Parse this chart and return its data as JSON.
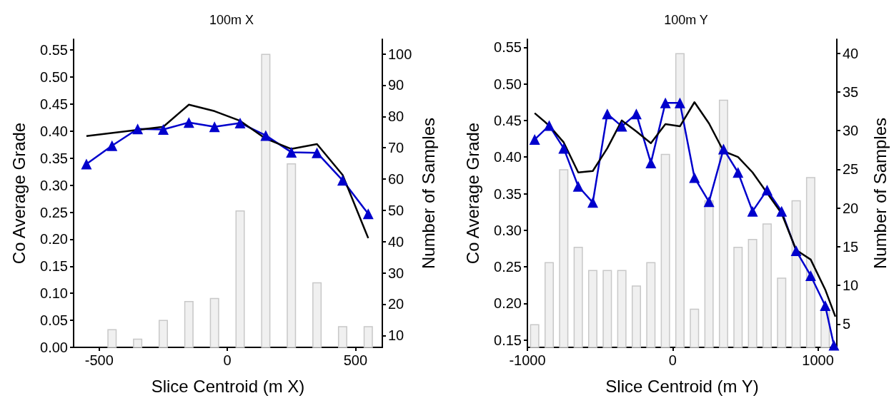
{
  "chart_data": [
    {
      "type": "line",
      "title": "100m X",
      "xlabel": "Slice Centroid (m X)",
      "ylabel": "Co Average Grade",
      "y2label": "Number of Samples",
      "xlim": [
        -600,
        605
      ],
      "xticks": [
        -500,
        0,
        500
      ],
      "ylim": [
        0,
        0.57
      ],
      "yticks": [
        {
          "value": 0,
          "label": "0.00"
        },
        0.05,
        {
          "value": 0.1,
          "label": "0.10"
        },
        0.15,
        {
          "value": 0.2,
          "label": "0.20"
        },
        0.25,
        {
          "value": 0.3,
          "label": "0.30"
        },
        0.35,
        {
          "value": 0.4,
          "label": "0.40"
        },
        0.45,
        {
          "value": 0.5,
          "label": "0.50"
        },
        0.55
      ],
      "y2lim": [
        6.2,
        104.7
      ],
      "y2ticks": [
        10,
        20,
        30,
        40,
        50,
        60,
        70,
        80,
        90,
        100
      ],
      "grid": false,
      "series": [
        {
          "type": "bar",
          "axis": "y2",
          "color": "#f0f0f0",
          "x": [
            -450,
            -350,
            -250,
            -150,
            -50,
            50,
            150,
            250,
            350,
            450,
            550
          ],
          "values": [
            12,
            9,
            15,
            21,
            22,
            50,
            100,
            65,
            27,
            13,
            13
          ]
        },
        {
          "color": "#0000cc",
          "marker": "triangle",
          "x": [
            -550,
            -450,
            -350,
            -250,
            -150,
            -50,
            50,
            150,
            250,
            350,
            450,
            550
          ],
          "values": [
            0.339,
            0.373,
            0.404,
            0.403,
            0.416,
            0.408,
            0.415,
            0.392,
            0.361,
            0.36,
            0.309,
            0.247
          ]
        },
        {
          "color": "#000000",
          "marker": "none",
          "x": [
            -550,
            -250,
            -150,
            -50,
            50,
            150,
            250,
            350,
            450,
            550
          ],
          "values": [
            0.391,
            0.408,
            0.449,
            0.437,
            0.419,
            0.386,
            0.367,
            0.376,
            0.319,
            0.202
          ]
        }
      ]
    },
    {
      "type": "line",
      "title": "100m Y",
      "xlabel": "Slice Centroid (m Y)",
      "ylabel": "Co Average Grade",
      "y2label": "Number of Samples",
      "xlim": [
        -1000,
        1130
      ],
      "xticks": [
        -1000,
        0,
        1000
      ],
      "ylim": [
        0.14,
        0.561
      ],
      "yticks": [
        0.15,
        {
          "value": 0.2,
          "label": "0.20"
        },
        0.25,
        {
          "value": 0.3,
          "label": "0.30"
        },
        0.35,
        {
          "value": 0.4,
          "label": "0.40"
        },
        0.45,
        {
          "value": 0.5,
          "label": "0.50"
        },
        0.55
      ],
      "y2lim": [
        2,
        41.8
      ],
      "y2ticks": [
        5,
        10,
        15,
        20,
        25,
        30,
        35,
        40
      ],
      "grid": false,
      "series": [
        {
          "type": "bar",
          "axis": "y2",
          "color": "#f0f0f0",
          "x": [
            -950,
            -850,
            -750,
            -650,
            -550,
            -450,
            -350,
            -250,
            -150,
            -50,
            50,
            150,
            250,
            350,
            450,
            550,
            650,
            750,
            850,
            950,
            1050
          ],
          "values": [
            5,
            13,
            25,
            15,
            12,
            12,
            12,
            10,
            13,
            27,
            40,
            7,
            21,
            34,
            15,
            16,
            18,
            11,
            21,
            24,
            7
          ]
        },
        {
          "color": "#0000cc",
          "marker": "triangle",
          "x": [
            -950,
            -850,
            -750,
            -650,
            -550,
            -450,
            -350,
            -250,
            -150,
            -50,
            50,
            150,
            250,
            350,
            450,
            550,
            650,
            750,
            850,
            950,
            1050,
            1110
          ],
          "values": [
            0.424,
            0.443,
            0.412,
            0.36,
            0.338,
            0.459,
            0.442,
            0.459,
            0.392,
            0.474,
            0.474,
            0.372,
            0.339,
            0.411,
            0.379,
            0.326,
            0.355,
            0.326,
            0.272,
            0.238,
            0.197,
            0.143
          ]
        },
        {
          "color": "#000000",
          "marker": "none",
          "x": [
            -950,
            -850,
            -750,
            -650,
            -550,
            -450,
            -350,
            -250,
            -150,
            -50,
            50,
            150,
            250,
            350,
            450,
            550,
            650,
            750,
            850,
            950,
            1050,
            1120
          ],
          "values": [
            0.46,
            0.443,
            0.42,
            0.379,
            0.381,
            0.412,
            0.45,
            0.435,
            0.419,
            0.445,
            0.442,
            0.475,
            0.446,
            0.408,
            0.4,
            0.379,
            0.351,
            0.323,
            0.273,
            0.26,
            0.219,
            0.182
          ]
        }
      ]
    }
  ]
}
